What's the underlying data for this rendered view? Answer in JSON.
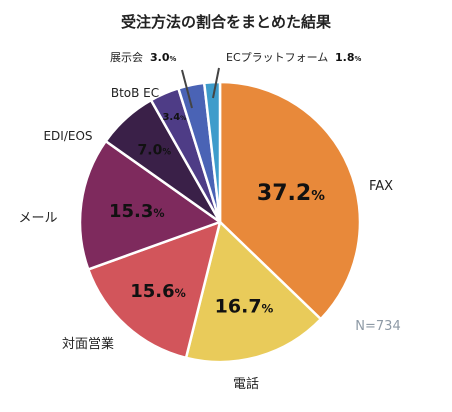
{
  "chart_data": {
    "type": "pie",
    "title": "受注方法の割合をまとめた結果",
    "note": "N=734",
    "slices": [
      {
        "label": "FAX",
        "value": 37.2,
        "color": "#E8893A",
        "display": "37.2"
      },
      {
        "label": "電話",
        "value": 16.7,
        "color": "#E9CB5A",
        "display": "16.7"
      },
      {
        "label": "対面営業",
        "value": 15.6,
        "color": "#D2555B",
        "display": "15.6"
      },
      {
        "label": "メール",
        "value": 15.3,
        "color": "#7E2A5D",
        "display": "15.3"
      },
      {
        "label": "EDI/EOS",
        "value": 7.0,
        "color": "#3A2048",
        "display": "7.0"
      },
      {
        "label": "BtoB EC",
        "value": 3.4,
        "color": "#4E3C86",
        "display": "3.4"
      },
      {
        "label": "展示会",
        "value": 3.0,
        "color": "#4A63B5",
        "display": "3.0"
      },
      {
        "label": "ECプラットフォーム",
        "value": 1.8,
        "color": "#3E9CCB",
        "display": "1.8"
      }
    ],
    "percent_sign": "%"
  }
}
